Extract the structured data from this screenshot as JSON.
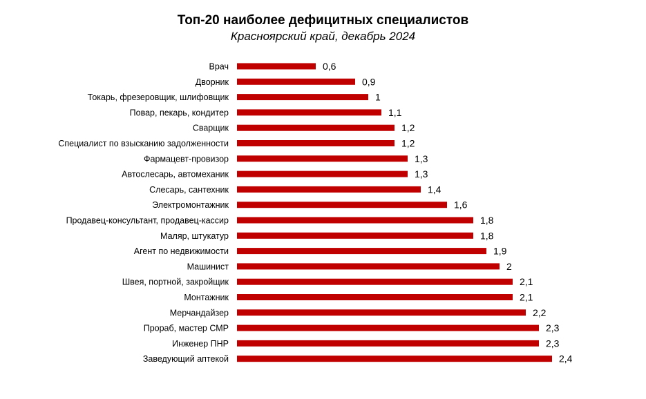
{
  "chart_data": {
    "type": "bar",
    "orientation": "horizontal",
    "title": "Топ-20 наиболее дефицитных специалистов",
    "subtitle": "Красноярский край, декабрь 2024",
    "categories": [
      "Врач",
      "Дворник",
      "Токарь, фрезеровщик, шлифовщик",
      "Повар, пекарь, кондитер",
      "Сварщик",
      "Специалист по взысканию задолженности",
      "Фармацевт-провизор",
      "Автослесарь, автомеханик",
      "Слесарь, сантехник",
      "Электромонтажник",
      "Продавец-консультант, продавец-кассир",
      "Маляр, штукатур",
      "Агент по недвижимости",
      "Машинист",
      "Швея, портной, закройщик",
      "Монтажник",
      "Мерчандайзер",
      "Прораб, мастер СМР",
      "Инженер ПНР",
      "Заведующий аптекой"
    ],
    "values": [
      0.6,
      0.9,
      1,
      1.1,
      1.2,
      1.2,
      1.3,
      1.3,
      1.4,
      1.6,
      1.8,
      1.8,
      1.9,
      2,
      2.1,
      2.1,
      2.2,
      2.3,
      2.3,
      2.4
    ],
    "value_labels": [
      "0,6",
      "0,9",
      "1",
      "1,1",
      "1,2",
      "1,2",
      "1,3",
      "1,3",
      "1,4",
      "1,6",
      "1,8",
      "1,8",
      "1,9",
      "2",
      "2,1",
      "2,1",
      "2,2",
      "2,3",
      "2,3",
      "2,4"
    ],
    "bar_color": "#C00000",
    "xlim": [
      0,
      2.4
    ],
    "grid": false,
    "legend": "none",
    "xlabel": "",
    "ylabel": ""
  }
}
